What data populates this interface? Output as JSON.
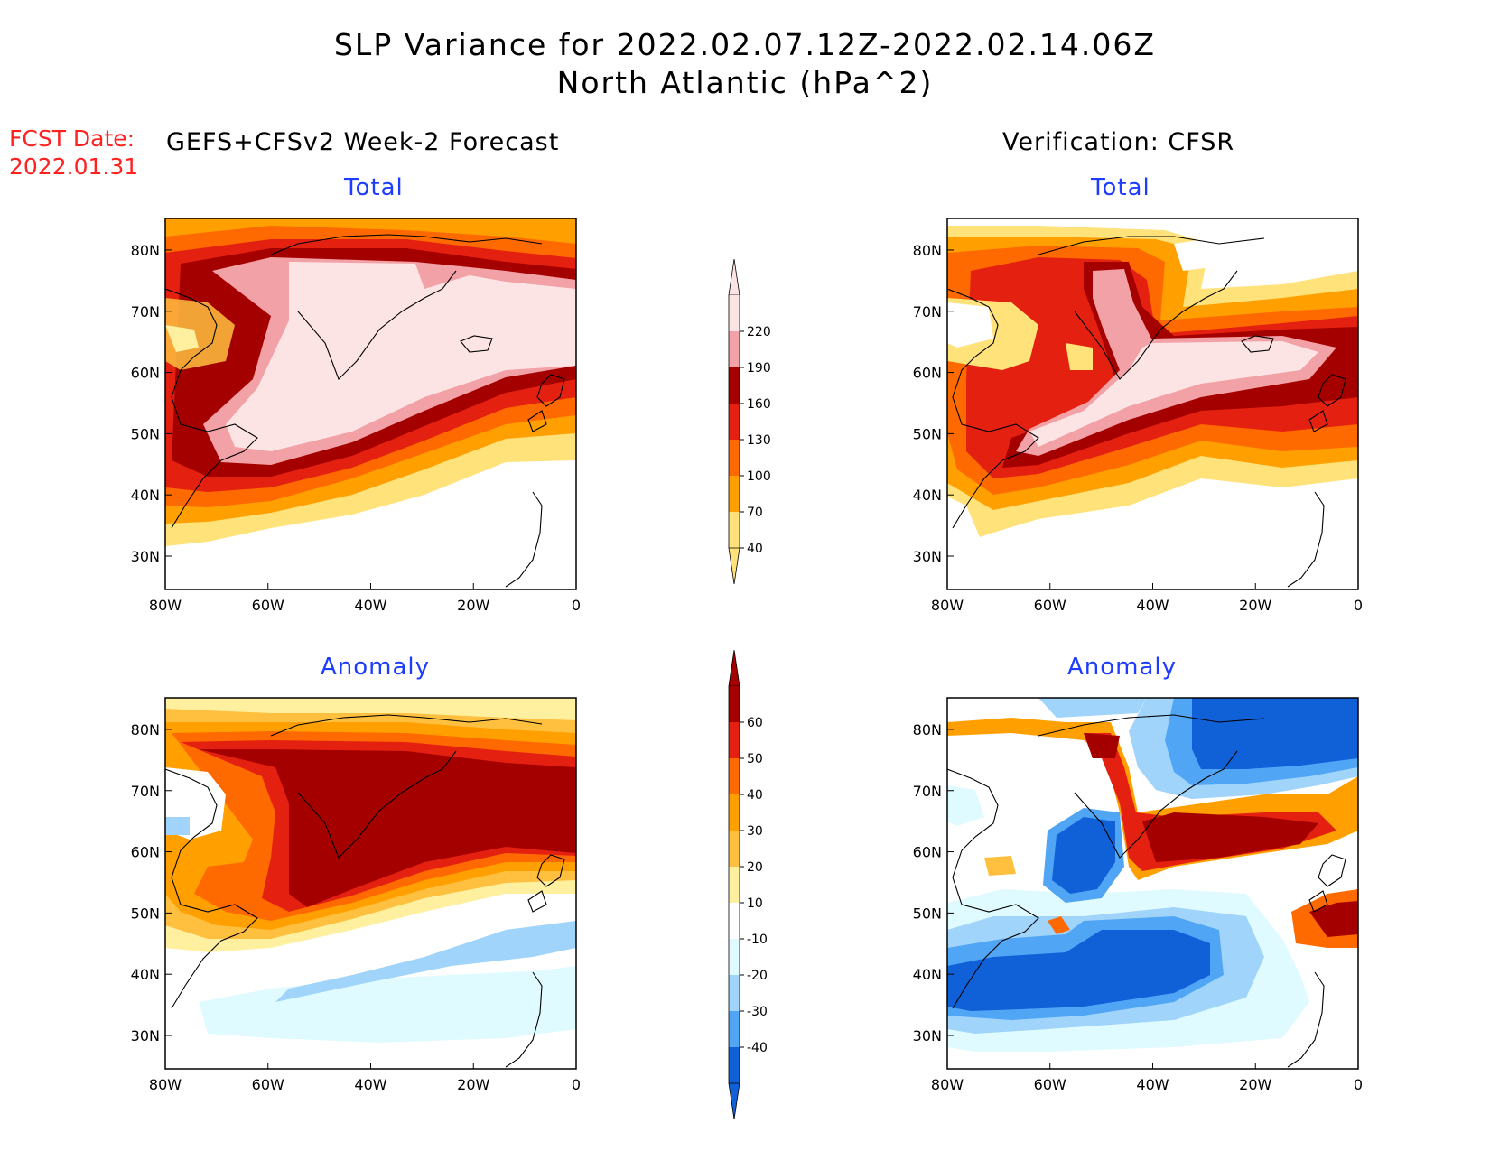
{
  "title": {
    "line1": "SLP Variance for 2022.02.07.12Z-2022.02.14.06Z",
    "line2": "North Atlantic (hPa^2)"
  },
  "fcst": {
    "label": "FCST Date:",
    "date": "2022.01.31"
  },
  "left_heading": "GEFS+CFSv2 Week-2 Forecast",
  "right_heading": "Verification: CFSR",
  "subtitles": {
    "total": "Total",
    "anomaly": "Anomaly"
  },
  "axes": {
    "lat_labels": [
      "80N",
      "70N",
      "60N",
      "50N",
      "40N",
      "30N"
    ],
    "lon_labels": [
      "80W",
      "60W",
      "40W",
      "20W",
      "0"
    ]
  },
  "colorbar_total": {
    "labels": [
      "220",
      "190",
      "160",
      "130",
      "100",
      "70",
      "40"
    ],
    "colors": [
      "#fde4e4",
      "#f2a1a6",
      "#a50000",
      "#e42010",
      "#ff6a00",
      "#ffa000",
      "#ffe27a"
    ]
  },
  "colorbar_anomaly": {
    "labels": [
      "60",
      "50",
      "40",
      "30",
      "20",
      "10",
      "-10",
      "-20",
      "-30",
      "-40"
    ],
    "colors": [
      "#a50000",
      "#e42010",
      "#ff6a00",
      "#ffa000",
      "#ffc040",
      "#fff0a0",
      "#ffffff",
      "#e0fbff",
      "#a0d4fa",
      "#50a5f5",
      "#1060d8"
    ]
  },
  "panels": [
    {
      "id": "forecast-total",
      "kind": "total",
      "source": "forecast"
    },
    {
      "id": "verification-total",
      "kind": "total",
      "source": "verification"
    },
    {
      "id": "forecast-anomaly",
      "kind": "anomaly",
      "source": "forecast"
    },
    {
      "id": "verification-anomaly",
      "kind": "anomaly",
      "source": "verification"
    }
  ]
}
